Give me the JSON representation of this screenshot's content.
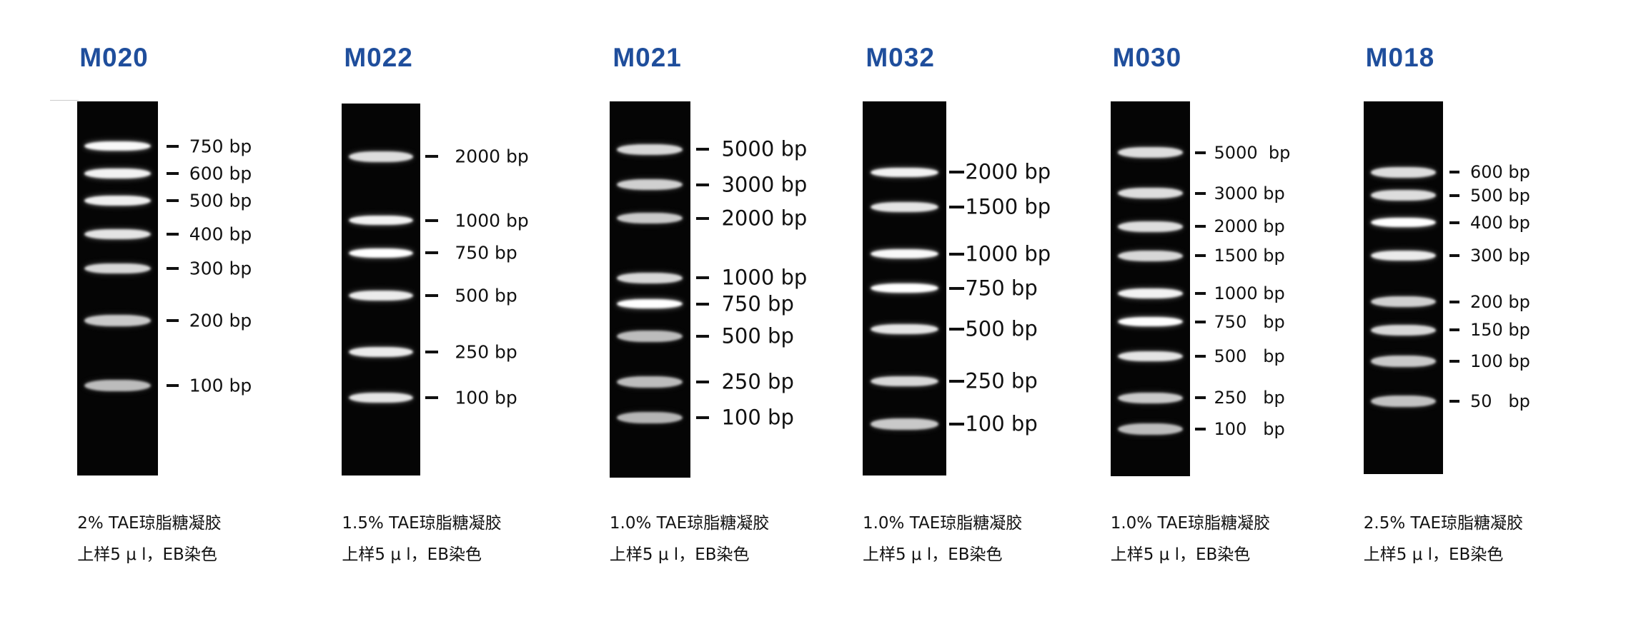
{
  "accent_color": "#1f4e9c",
  "markers": [
    {
      "name": "M020",
      "caption1": "2% TAE琼脂糖凝胶",
      "caption2": "上样5 μ l，EB染色",
      "bands": [
        {
          "label": "750 bp",
          "intensity": 0.95
        },
        {
          "label": "600 bp",
          "intensity": 0.9
        },
        {
          "label": "500 bp",
          "intensity": 0.88
        },
        {
          "label": "400 bp",
          "intensity": 0.8
        },
        {
          "label": "300 bp",
          "intensity": 0.7
        },
        {
          "label": "200 bp",
          "intensity": 0.6
        },
        {
          "label": "100 bp",
          "intensity": 0.5
        }
      ]
    },
    {
      "name": "M022",
      "caption1": "1.5% TAE琼脂糖凝胶",
      "caption2": "上样5 μ l，EB染色",
      "bands": [
        {
          "label": "2000 bp",
          "intensity": 0.75
        },
        {
          "label": "1000 bp",
          "intensity": 0.9
        },
        {
          "label": "750 bp",
          "intensity": 1.0
        },
        {
          "label": "500 bp",
          "intensity": 0.85
        },
        {
          "label": "250 bp",
          "intensity": 0.85
        },
        {
          "label": "100 bp",
          "intensity": 0.8
        }
      ]
    },
    {
      "name": "M021",
      "caption1": "1.0% TAE琼脂糖凝胶",
      "caption2": "上样5 μ l，EB染色",
      "bands": [
        {
          "label": "5000 bp",
          "intensity": 0.7
        },
        {
          "label": "3000 bp",
          "intensity": 0.65
        },
        {
          "label": "2000 bp",
          "intensity": 0.6
        },
        {
          "label": "1000 bp",
          "intensity": 0.7
        },
        {
          "label": "750 bp",
          "intensity": 1.0
        },
        {
          "label": "500 bp",
          "intensity": 0.5
        },
        {
          "label": "250 bp",
          "intensity": 0.5
        },
        {
          "label": "100 bp",
          "intensity": 0.45
        }
      ]
    },
    {
      "name": "M032",
      "caption1": "1.0% TAE琼脂糖凝胶",
      "caption2": "上样5 μ l，EB染色",
      "bands": [
        {
          "label": "2000 bp",
          "intensity": 0.9
        },
        {
          "label": "1500 bp",
          "intensity": 0.8
        },
        {
          "label": "1000 bp",
          "intensity": 0.95
        },
        {
          "label": "750 bp",
          "intensity": 1.0
        },
        {
          "label": "500 bp",
          "intensity": 0.8
        },
        {
          "label": "250 bp",
          "intensity": 0.7
        },
        {
          "label": "100 bp",
          "intensity": 0.6
        }
      ]
    },
    {
      "name": "M030",
      "caption1": "1.0% TAE琼脂糖凝胶",
      "caption2": "上样5 μ l，EB染色",
      "bands": [
        {
          "label": "5000  bp",
          "intensity": 0.75
        },
        {
          "label": "3000 bp",
          "intensity": 0.75
        },
        {
          "label": "2000 bp",
          "intensity": 0.75
        },
        {
          "label": "1500 bp",
          "intensity": 0.7
        },
        {
          "label": "1000 bp",
          "intensity": 0.9
        },
        {
          "label": "750   bp",
          "intensity": 1.0
        },
        {
          "label": "500   bp",
          "intensity": 0.8
        },
        {
          "label": "250   bp",
          "intensity": 0.6
        },
        {
          "label": "100   bp",
          "intensity": 0.5
        }
      ]
    },
    {
      "name": "M018",
      "caption1": "2.5% TAE琼脂糖凝胶",
      "caption2": "上样5 μ l，EB染色",
      "bands": [
        {
          "label": "600 bp",
          "intensity": 0.75
        },
        {
          "label": "500 bp",
          "intensity": 0.75
        },
        {
          "label": "400 bp",
          "intensity": 1.0
        },
        {
          "label": "300 bp",
          "intensity": 0.85
        },
        {
          "label": "200 bp",
          "intensity": 0.65
        },
        {
          "label": "150 bp",
          "intensity": 0.7
        },
        {
          "label": "100 bp",
          "intensity": 0.6
        },
        {
          "label": "50   bp",
          "intensity": 0.55
        }
      ]
    }
  ]
}
